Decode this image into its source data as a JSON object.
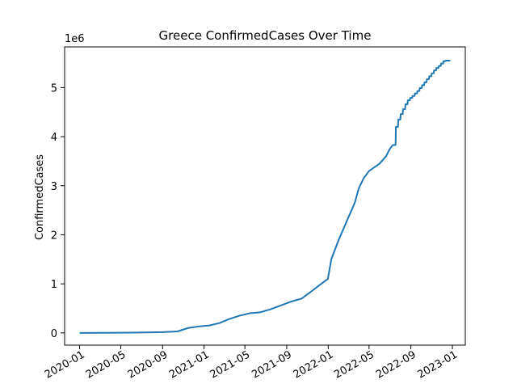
{
  "chart_data": {
    "type": "line",
    "title": "Greece  ConfirmedCases Over Time",
    "xlabel": "",
    "ylabel": "ConfirmedCases",
    "y_scale_label": "1e6",
    "y_scale": 1000000,
    "ylim": [
      -250000,
      5830000
    ],
    "xlim": [
      "2019-11-18",
      "2023-02-08"
    ],
    "grid": false,
    "line_color": "#1f77b4",
    "x_ticks": [
      {
        "label": "2020-01",
        "date": "2020-01-01"
      },
      {
        "label": "2020-05",
        "date": "2020-05-01"
      },
      {
        "label": "2020-09",
        "date": "2020-09-01"
      },
      {
        "label": "2021-01",
        "date": "2021-01-01"
      },
      {
        "label": "2021-05",
        "date": "2021-05-01"
      },
      {
        "label": "2021-09",
        "date": "2021-09-01"
      },
      {
        "label": "2022-01",
        "date": "2022-01-01"
      },
      {
        "label": "2022-05",
        "date": "2022-05-01"
      },
      {
        "label": "2022-09",
        "date": "2022-09-01"
      },
      {
        "label": "2023-01",
        "date": "2023-01-01"
      }
    ],
    "y_ticks": [
      {
        "label": "0",
        "value": 0
      },
      {
        "label": "1",
        "value": 1000000
      },
      {
        "label": "2",
        "value": 2000000
      },
      {
        "label": "3",
        "value": 3000000
      },
      {
        "label": "4",
        "value": 4000000
      },
      {
        "label": "5",
        "value": 5000000
      }
    ],
    "series": [
      {
        "x": [
          "2020-01-01",
          "2020-03-01",
          "2020-06-01",
          "2020-09-01",
          "2020-10-15",
          "2020-11-15",
          "2020-12-15",
          "2021-01-15",
          "2021-02-15",
          "2021-03-15",
          "2021-04-15",
          "2021-05-15",
          "2021-06-15",
          "2021-07-15",
          "2021-08-15",
          "2021-09-15",
          "2021-10-15",
          "2021-11-15",
          "2021-12-15",
          "2021-12-31",
          "2022-01-10",
          "2022-02-01",
          "2022-03-01",
          "2022-03-20",
          "2022-04-01",
          "2022-04-15",
          "2022-05-01",
          "2022-06-01",
          "2022-06-20",
          "2022-07-01",
          "2022-07-10",
          "2022-07-11",
          "2022-07-18",
          "2022-07-19",
          "2022-07-25",
          "2022-07-26",
          "2022-08-01",
          "2022-08-02",
          "2022-08-08",
          "2022-08-09",
          "2022-08-15",
          "2022-08-16",
          "2022-08-22",
          "2022-08-23",
          "2022-08-29",
          "2022-08-30",
          "2022-09-05",
          "2022-09-06",
          "2022-09-12",
          "2022-09-13",
          "2022-09-19",
          "2022-09-20",
          "2022-09-26",
          "2022-09-27",
          "2022-10-03",
          "2022-10-04",
          "2022-10-10",
          "2022-10-11",
          "2022-10-17",
          "2022-10-18",
          "2022-10-24",
          "2022-10-25",
          "2022-10-31",
          "2022-11-01",
          "2022-11-07",
          "2022-11-08",
          "2022-11-14",
          "2022-11-15",
          "2022-11-21",
          "2022-11-22",
          "2022-11-28",
          "2022-11-29",
          "2022-12-05",
          "2022-12-06",
          "2022-12-12",
          "2022-12-13",
          "2022-12-19",
          "2022-12-20",
          "2022-12-26"
        ],
        "y": [
          0,
          2000,
          5000,
          15000,
          30000,
          100000,
          130000,
          150000,
          200000,
          280000,
          350000,
          400000,
          420000,
          480000,
          560000,
          640000,
          700000,
          860000,
          1020000,
          1100000,
          1500000,
          1900000,
          2350000,
          2650000,
          2950000,
          3150000,
          3300000,
          3450000,
          3600000,
          3750000,
          3830000,
          3830000,
          3830000,
          4200000,
          4200000,
          4350000,
          4350000,
          4460000,
          4460000,
          4560000,
          4560000,
          4660000,
          4660000,
          4740000,
          4740000,
          4790000,
          4790000,
          4830000,
          4830000,
          4880000,
          4880000,
          4930000,
          4930000,
          4990000,
          4990000,
          5050000,
          5050000,
          5110000,
          5110000,
          5170000,
          5170000,
          5230000,
          5230000,
          5290000,
          5290000,
          5350000,
          5350000,
          5400000,
          5400000,
          5440000,
          5440000,
          5490000,
          5490000,
          5540000,
          5540000,
          5550000,
          5550000,
          5550000,
          5550000
        ]
      }
    ]
  }
}
